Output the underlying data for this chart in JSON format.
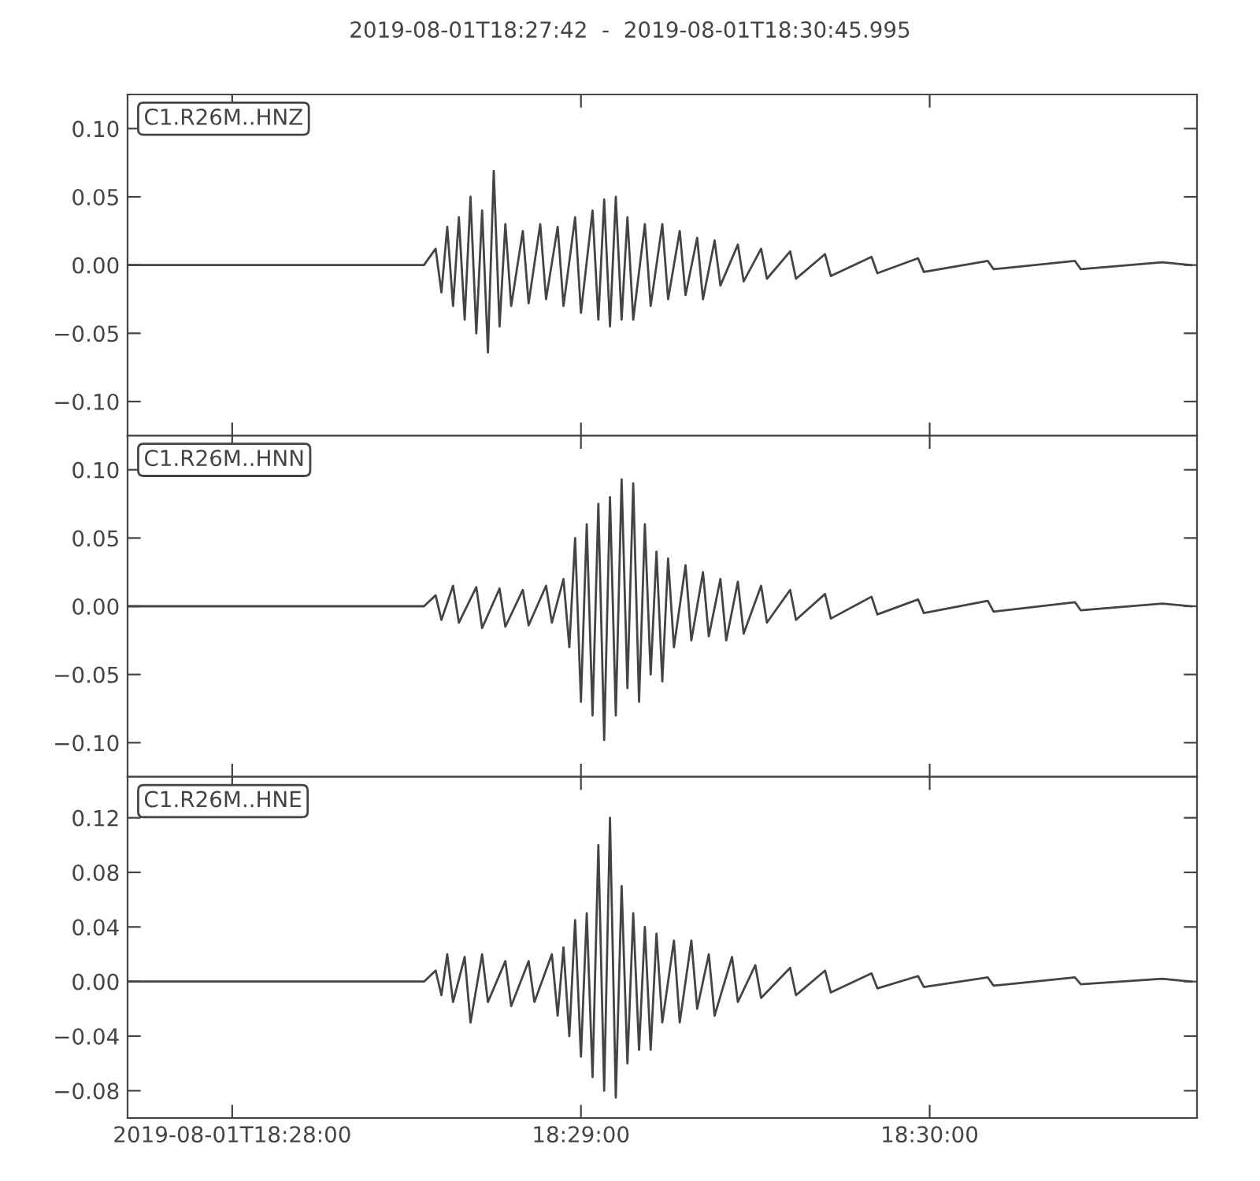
{
  "chart_data": [
    {
      "type": "line",
      "title": "2019-08-01T18:27:42  -  2019-08-01T18:30:45.995",
      "annotations": [
        "C1.R26M..HNZ"
      ],
      "tick_labels": "y",
      "xlim": [
        "2019-08-01T18:27:42",
        "2019-08-01T18:30:45.995"
      ],
      "xticks": [
        {
          "value": "2019-08-01T18:28:00",
          "label": null
        },
        {
          "value": "2019-08-01T18:29:00",
          "label": null
        },
        {
          "value": "2019-08-01T18:30:00",
          "label": null
        }
      ],
      "ylim": [
        -0.125,
        0.125
      ],
      "yticks": [
        {
          "value": -0.1,
          "label": "−0.10"
        },
        {
          "value": -0.05,
          "label": "−0.05"
        },
        {
          "value": 0,
          "label": "0.00"
        },
        {
          "value": 0.05,
          "label": "0.05"
        },
        {
          "value": 0.1,
          "label": "0.10"
        }
      ],
      "series": [
        {
          "color": "#444444",
          "x": [
            "2019-08-01T18:27:42",
            "2019-08-01T18:28:10",
            "2019-08-01T18:28:33",
            "2019-08-01T18:28:35",
            "2019-08-01T18:28:36",
            "2019-08-01T18:28:37",
            "2019-08-01T18:28:38",
            "2019-08-01T18:28:39",
            "2019-08-01T18:28:40",
            "2019-08-01T18:28:41",
            "2019-08-01T18:28:42",
            "2019-08-01T18:28:43",
            "2019-08-01T18:28:44",
            "2019-08-01T18:28:45",
            "2019-08-01T18:28:46",
            "2019-08-01T18:28:47",
            "2019-08-01T18:28:48",
            "2019-08-01T18:28:50",
            "2019-08-01T18:28:51",
            "2019-08-01T18:28:53",
            "2019-08-01T18:28:54",
            "2019-08-01T18:28:56",
            "2019-08-01T18:28:57",
            "2019-08-01T18:28:59",
            "2019-08-01T18:29:00",
            "2019-08-01T18:29:02",
            "2019-08-01T18:29:03",
            "2019-08-01T18:29:04",
            "2019-08-01T18:29:05",
            "2019-08-01T18:29:06",
            "2019-08-01T18:29:07",
            "2019-08-01T18:29:08",
            "2019-08-01T18:29:09",
            "2019-08-01T18:29:11",
            "2019-08-01T18:29:12",
            "2019-08-01T18:29:14",
            "2019-08-01T18:29:15",
            "2019-08-01T18:29:17",
            "2019-08-01T18:29:18",
            "2019-08-01T18:29:20",
            "2019-08-01T18:29:21",
            "2019-08-01T18:29:23",
            "2019-08-01T18:29:24",
            "2019-08-01T18:29:27",
            "2019-08-01T18:29:28",
            "2019-08-01T18:29:31",
            "2019-08-01T18:29:32",
            "2019-08-01T18:29:36",
            "2019-08-01T18:29:37",
            "2019-08-01T18:29:42",
            "2019-08-01T18:29:43",
            "2019-08-01T18:29:50",
            "2019-08-01T18:29:51",
            "2019-08-01T18:29:58",
            "2019-08-01T18:29:59",
            "2019-08-01T18:30:10",
            "2019-08-01T18:30:11",
            "2019-08-01T18:30:25",
            "2019-08-01T18:30:26",
            "2019-08-01T18:30:40",
            "2019-08-01T18:30:45"
          ],
          "values": [
            0,
            0,
            0,
            0.012,
            -0.02,
            0.028,
            -0.03,
            0.035,
            -0.04,
            0.05,
            -0.05,
            0.04,
            -0.064,
            0.069,
            -0.045,
            0.03,
            -0.03,
            0.025,
            -0.028,
            0.03,
            -0.025,
            0.028,
            -0.03,
            0.035,
            -0.035,
            0.04,
            -0.04,
            0.048,
            -0.045,
            0.05,
            -0.04,
            0.035,
            -0.04,
            0.03,
            -0.03,
            0.03,
            -0.025,
            0.025,
            -0.022,
            0.02,
            -0.025,
            0.018,
            -0.015,
            0.015,
            -0.012,
            0.012,
            -0.01,
            0.01,
            -0.01,
            0.008,
            -0.008,
            0.006,
            -0.006,
            0.005,
            -0.005,
            0.003,
            -0.003,
            0.003,
            -0.003,
            0.002,
            0
          ]
        }
      ]
    },
    {
      "type": "line",
      "annotations": [
        "C1.R26M..HNN"
      ],
      "tick_labels": "y",
      "xlim": [
        "2019-08-01T18:27:42",
        "2019-08-01T18:30:45.995"
      ],
      "xticks": [
        {
          "value": "2019-08-01T18:28:00",
          "label": null
        },
        {
          "value": "2019-08-01T18:29:00",
          "label": null
        },
        {
          "value": "2019-08-01T18:30:00",
          "label": null
        }
      ],
      "ylim": [
        -0.125,
        0.125
      ],
      "yticks": [
        {
          "value": -0.1,
          "label": "−0.10"
        },
        {
          "value": -0.05,
          "label": "−0.05"
        },
        {
          "value": 0,
          "label": "0.00"
        },
        {
          "value": 0.05,
          "label": "0.05"
        },
        {
          "value": 0.1,
          "label": "0.10"
        }
      ],
      "series": [
        {
          "color": "#444444",
          "x": [
            "2019-08-01T18:27:42",
            "2019-08-01T18:28:10",
            "2019-08-01T18:28:33",
            "2019-08-01T18:28:35",
            "2019-08-01T18:28:36",
            "2019-08-01T18:28:38",
            "2019-08-01T18:28:39",
            "2019-08-01T18:28:42",
            "2019-08-01T18:28:43",
            "2019-08-01T18:28:46",
            "2019-08-01T18:28:47",
            "2019-08-01T18:28:50",
            "2019-08-01T18:28:51",
            "2019-08-01T18:28:54",
            "2019-08-01T18:28:55",
            "2019-08-01T18:28:57",
            "2019-08-01T18:28:58",
            "2019-08-01T18:28:59",
            "2019-08-01T18:29:00",
            "2019-08-01T18:29:01",
            "2019-08-01T18:29:02",
            "2019-08-01T18:29:03",
            "2019-08-01T18:29:04",
            "2019-08-01T18:29:05",
            "2019-08-01T18:29:06",
            "2019-08-01T18:29:07",
            "2019-08-01T18:29:08",
            "2019-08-01T18:29:09",
            "2019-08-01T18:29:10",
            "2019-08-01T18:29:11",
            "2019-08-01T18:29:12",
            "2019-08-01T18:29:13",
            "2019-08-01T18:29:14",
            "2019-08-01T18:29:15",
            "2019-08-01T18:29:16",
            "2019-08-01T18:29:18",
            "2019-08-01T18:29:19",
            "2019-08-01T18:29:21",
            "2019-08-01T18:29:22",
            "2019-08-01T18:29:24",
            "2019-08-01T18:29:25",
            "2019-08-01T18:29:27",
            "2019-08-01T18:29:28",
            "2019-08-01T18:29:31",
            "2019-08-01T18:29:32",
            "2019-08-01T18:29:36",
            "2019-08-01T18:29:37",
            "2019-08-01T18:29:42",
            "2019-08-01T18:29:43",
            "2019-08-01T18:29:50",
            "2019-08-01T18:29:51",
            "2019-08-01T18:29:58",
            "2019-08-01T18:29:59",
            "2019-08-01T18:30:10",
            "2019-08-01T18:30:11",
            "2019-08-01T18:30:25",
            "2019-08-01T18:30:26",
            "2019-08-01T18:30:40",
            "2019-08-01T18:30:45"
          ],
          "values": [
            0,
            0,
            0,
            0.008,
            -0.01,
            0.015,
            -0.012,
            0.014,
            -0.016,
            0.013,
            -0.015,
            0.012,
            -0.014,
            0.015,
            -0.012,
            0.02,
            -0.03,
            0.05,
            -0.07,
            0.06,
            -0.08,
            0.075,
            -0.098,
            0.08,
            -0.08,
            0.093,
            -0.06,
            0.09,
            -0.07,
            0.06,
            -0.05,
            0.04,
            -0.055,
            0.035,
            -0.03,
            0.03,
            -0.025,
            0.025,
            -0.022,
            0.02,
            -0.025,
            0.018,
            -0.02,
            0.015,
            -0.012,
            0.012,
            -0.01,
            0.009,
            -0.009,
            0.007,
            -0.006,
            0.005,
            -0.005,
            0.004,
            -0.004,
            0.003,
            -0.003,
            0.002,
            0
          ]
        }
      ]
    },
    {
      "type": "line",
      "annotations": [
        "C1.R26M..HNE"
      ],
      "xlim": [
        "2019-08-01T18:27:42",
        "2019-08-01T18:30:45.995"
      ],
      "xticks": [
        {
          "value": "2019-08-01T18:28:00",
          "label": "2019-08-01T18:28:00"
        },
        {
          "value": "2019-08-01T18:29:00",
          "label": "18:29:00"
        },
        {
          "value": "2019-08-01T18:30:00",
          "label": "18:30:00"
        }
      ],
      "ylim": [
        -0.1,
        0.15
      ],
      "yticks": [
        {
          "value": -0.08,
          "label": "−0.08"
        },
        {
          "value": -0.04,
          "label": "−0.04"
        },
        {
          "value": 0,
          "label": "0.00"
        },
        {
          "value": 0.04,
          "label": "0.04"
        },
        {
          "value": 0.08,
          "label": "0.08"
        },
        {
          "value": 0.12,
          "label": "0.12"
        }
      ],
      "series": [
        {
          "color": "#444444",
          "x": [
            "2019-08-01T18:27:42",
            "2019-08-01T18:28:10",
            "2019-08-01T18:28:33",
            "2019-08-01T18:28:35",
            "2019-08-01T18:28:36",
            "2019-08-01T18:28:37",
            "2019-08-01T18:28:38",
            "2019-08-01T18:28:40",
            "2019-08-01T18:28:41",
            "2019-08-01T18:28:43",
            "2019-08-01T18:28:44",
            "2019-08-01T18:28:47",
            "2019-08-01T18:28:48",
            "2019-08-01T18:28:51",
            "2019-08-01T18:28:52",
            "2019-08-01T18:28:55",
            "2019-08-01T18:28:56",
            "2019-08-01T18:28:57",
            "2019-08-01T18:28:58",
            "2019-08-01T18:28:59",
            "2019-08-01T18:29:00",
            "2019-08-01T18:29:01",
            "2019-08-01T18:29:02",
            "2019-08-01T18:29:03",
            "2019-08-01T18:29:04",
            "2019-08-01T18:29:05",
            "2019-08-01T18:29:06",
            "2019-08-01T18:29:07",
            "2019-08-01T18:29:08",
            "2019-08-01T18:29:09",
            "2019-08-01T18:29:10",
            "2019-08-01T18:29:11",
            "2019-08-01T18:29:12",
            "2019-08-01T18:29:13",
            "2019-08-01T18:29:14",
            "2019-08-01T18:29:16",
            "2019-08-01T18:29:17",
            "2019-08-01T18:29:19",
            "2019-08-01T18:29:20",
            "2019-08-01T18:29:22",
            "2019-08-01T18:29:23",
            "2019-08-01T18:29:26",
            "2019-08-01T18:29:27",
            "2019-08-01T18:29:30",
            "2019-08-01T18:29:31",
            "2019-08-01T18:29:36",
            "2019-08-01T18:29:37",
            "2019-08-01T18:29:42",
            "2019-08-01T18:29:43",
            "2019-08-01T18:29:50",
            "2019-08-01T18:29:51",
            "2019-08-01T18:29:58",
            "2019-08-01T18:29:59",
            "2019-08-01T18:30:10",
            "2019-08-01T18:30:11",
            "2019-08-01T18:30:25",
            "2019-08-01T18:30:26",
            "2019-08-01T18:30:40",
            "2019-08-01T18:30:45"
          ],
          "values": [
            0,
            0,
            0,
            0.008,
            -0.01,
            0.02,
            -0.015,
            0.018,
            -0.03,
            0.02,
            -0.015,
            0.015,
            -0.018,
            0.015,
            -0.015,
            0.02,
            -0.025,
            0.025,
            -0.04,
            0.045,
            -0.055,
            0.05,
            -0.07,
            0.1,
            -0.08,
            0.12,
            -0.085,
            0.07,
            -0.06,
            0.05,
            -0.05,
            0.04,
            -0.05,
            0.035,
            -0.03,
            0.03,
            -0.03,
            0.03,
            -0.02,
            0.02,
            -0.025,
            0.018,
            -0.015,
            0.012,
            -0.012,
            0.01,
            -0.01,
            0.008,
            -0.008,
            0.006,
            -0.005,
            0.004,
            -0.004,
            0.003,
            -0.003,
            0.003,
            -0.002,
            0.002,
            0
          ]
        }
      ]
    }
  ]
}
